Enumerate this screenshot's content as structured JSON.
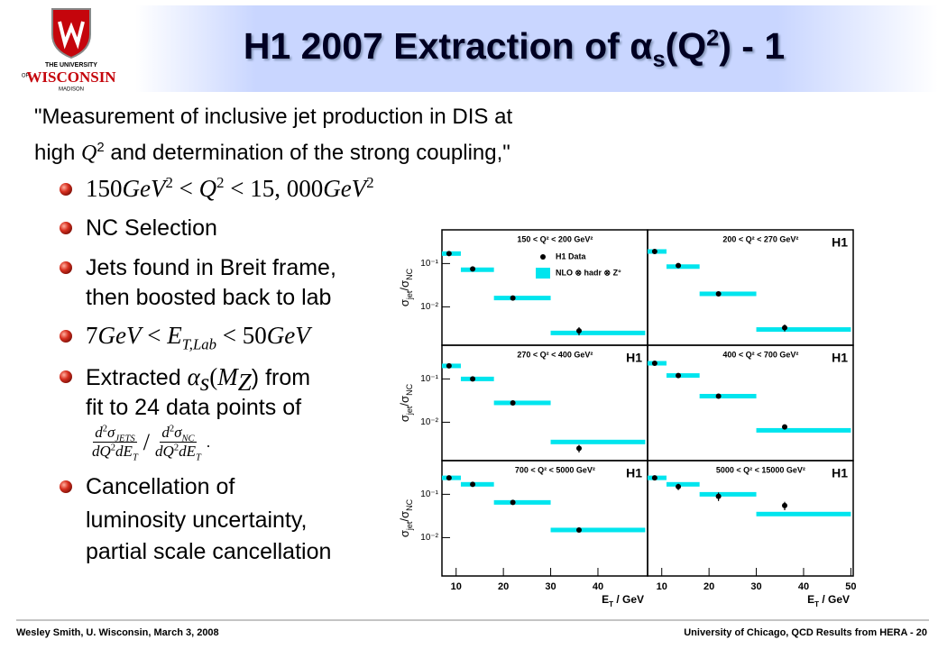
{
  "logo": {
    "lines": [
      "THE UNIVERSITY",
      "OF",
      "WISCONSIN",
      "MADISON"
    ]
  },
  "title": [
    "H1 2007 Extraction of ",
    "α",
    "s",
    "(Q",
    "2",
    ") - 1"
  ],
  "quote": {
    "line1": "\"Measurement of inclusive jet production in DIS at",
    "line2": [
      "high ",
      "Q",
      "2",
      " and determination of the strong coupling,\""
    ]
  },
  "bullets": [
    {
      "parts": [
        "150",
        "GeV",
        "2",
        " < ",
        "Q",
        "2",
        " < 15, 000",
        "GeV",
        "2"
      ]
    },
    {
      "lines": [
        "NC Selection"
      ]
    },
    {
      "lines": [
        "Jets found in Breit frame,",
        "then boosted back to lab"
      ]
    },
    {
      "parts": [
        "7",
        "GeV",
        " < ",
        "E",
        "T,Lab",
        " < 50",
        "GeV"
      ]
    },
    {
      "parts": [
        "Extracted ",
        "α",
        "s",
        "(",
        "M",
        "Z",
        ") from"
      ],
      "line2": "fit to 24 data points of",
      "fraction": {
        "n1": [
          "d",
          "2",
          "σ",
          "JETS"
        ],
        "d1": [
          "dQ",
          "2",
          "dE",
          "T"
        ],
        "slash": "/",
        "n2": [
          "d",
          "2",
          "σ",
          "NC"
        ],
        "d2": [
          "dQ",
          "2",
          "dE",
          "T"
        ],
        "end": "."
      }
    },
    {
      "lines": [
        "Cancellation of",
        "luminosity uncertainty,",
        "partial scale cancellation"
      ]
    }
  ],
  "footer": {
    "left": "Wesley Smith, U. Wisconsin, March 3, 2008",
    "right": "University of Chicago, QCD Results from HERA - 20"
  },
  "chart_data": [
    {
      "type": "scatter",
      "title": "150 < Q² < 200 GeV²",
      "x": [
        8.5,
        13.5,
        22,
        36
      ],
      "bins": [
        7,
        11,
        18,
        30,
        50
      ],
      "xlim": [
        7,
        50.5
      ],
      "ylim": [
        0.0013,
        0.6
      ],
      "log_y": true,
      "yticks": [
        {
          "value": 0.1,
          "label": "10⁻¹"
        },
        {
          "value": 0.01,
          "label": "10⁻²"
        }
      ],
      "ylabel": [
        "σ",
        "jet",
        "/",
        "σ",
        "NC"
      ],
      "series": [
        {
          "name": "H1 Data",
          "color": "#000000",
          "values": [
            0.17,
            0.075,
            0.016,
            0.0028
          ],
          "errors": [
            0.01,
            0.004,
            0.001,
            0.0006
          ]
        },
        {
          "name": "NLO ⊗ hadr ⊗ Z°",
          "color": "#00e5ee",
          "values": [
            0.17,
            0.072,
            0.016,
            0.0025
          ]
        }
      ]
    },
    {
      "type": "scatter",
      "title": "200 < Q² < 270 GeV²",
      "badge": "H1",
      "x": [
        8.5,
        13.5,
        22,
        36
      ],
      "bins": [
        7,
        11,
        18,
        30,
        50
      ],
      "xlim": [
        7,
        50.5
      ],
      "ylim": [
        0.0013,
        0.6
      ],
      "log_y": true,
      "series": [
        {
          "color": "#000000",
          "values": [
            0.19,
            0.09,
            0.02,
            0.0033
          ],
          "errors": [
            0.01,
            0.005,
            0.0012,
            0.0006
          ]
        },
        {
          "color": "#00e5ee",
          "values": [
            0.19,
            0.085,
            0.02,
            0.003
          ]
        }
      ]
    },
    {
      "type": "scatter",
      "title": "270 < Q² < 400 GeV²",
      "badge": "H1",
      "x": [
        8.5,
        13.5,
        22,
        36
      ],
      "bins": [
        7,
        11,
        18,
        30,
        50
      ],
      "xlim": [
        7,
        50.5
      ],
      "ylim": [
        0.0013,
        0.6
      ],
      "log_y": true,
      "yticks": [
        {
          "value": 0.1,
          "label": "10⁻¹"
        },
        {
          "value": 0.01,
          "label": "10⁻²"
        }
      ],
      "ylabel": [
        "σ",
        "jet",
        "/",
        "σ",
        "NC"
      ],
      "series": [
        {
          "color": "#000000",
          "values": [
            0.2,
            0.1,
            0.028,
            0.0025
          ],
          "errors": [
            0.01,
            0.008,
            0.0015,
            0.0005
          ]
        },
        {
          "color": "#00e5ee",
          "values": [
            0.2,
            0.1,
            0.028,
            0.0035
          ]
        }
      ]
    },
    {
      "type": "scatter",
      "title": "400 < Q² < 700 GeV²",
      "badge": "H1",
      "x": [
        8.5,
        13.5,
        22,
        36
      ],
      "bins": [
        7,
        11,
        18,
        30,
        50
      ],
      "xlim": [
        7,
        50.5
      ],
      "ylim": [
        0.0013,
        0.6
      ],
      "log_y": true,
      "series": [
        {
          "color": "#000000",
          "values": [
            0.23,
            0.12,
            0.04,
            0.0078
          ],
          "errors": [
            0.012,
            0.007,
            0.002,
            0.0006
          ]
        },
        {
          "color": "#00e5ee",
          "values": [
            0.23,
            0.12,
            0.04,
            0.0065
          ]
        }
      ]
    },
    {
      "type": "scatter",
      "title": "700 < Q² < 5000 GeV²",
      "badge": "H1",
      "x": [
        8.5,
        13.5,
        22,
        36
      ],
      "bins": [
        7,
        11,
        18,
        30,
        50
      ],
      "xlim": [
        7,
        50.5
      ],
      "ylim": [
        0.0013,
        0.6
      ],
      "log_y": true,
      "yticks": [
        {
          "value": 0.1,
          "label": "10⁻¹"
        },
        {
          "value": 0.01,
          "label": "10⁻²"
        }
      ],
      "ylabel": [
        "σ",
        "jet",
        "/",
        "σ",
        "NC"
      ],
      "xticks": [
        10,
        20,
        30,
        40
      ],
      "xlabel": [
        "E",
        "T",
        " / GeV"
      ],
      "series": [
        {
          "color": "#000000",
          "values": [
            0.24,
            0.17,
            0.065,
            0.015
          ],
          "errors": [
            0.015,
            0.012,
            0.004,
            0.0012
          ]
        },
        {
          "color": "#00e5ee",
          "values": [
            0.24,
            0.17,
            0.065,
            0.015
          ]
        }
      ]
    },
    {
      "type": "scatter",
      "title": "5000 < Q² < 15000 GeV²",
      "badge": "H1",
      "x": [
        8.5,
        13.5,
        22,
        36
      ],
      "bins": [
        7,
        11,
        18,
        30,
        50
      ],
      "xlim": [
        7,
        50.5
      ],
      "ylim": [
        0.0013,
        0.6
      ],
      "log_y": true,
      "xticks": [
        10,
        20,
        30,
        40,
        50
      ],
      "xlabel": [
        "E",
        "T",
        " / GeV"
      ],
      "series": [
        {
          "color": "#000000",
          "values": [
            0.24,
            0.15,
            0.09,
            0.055
          ],
          "errors": [
            0.02,
            0.025,
            0.02,
            0.012
          ]
        },
        {
          "color": "#00e5ee",
          "values": [
            0.24,
            0.17,
            0.1,
            0.035
          ]
        }
      ]
    }
  ]
}
